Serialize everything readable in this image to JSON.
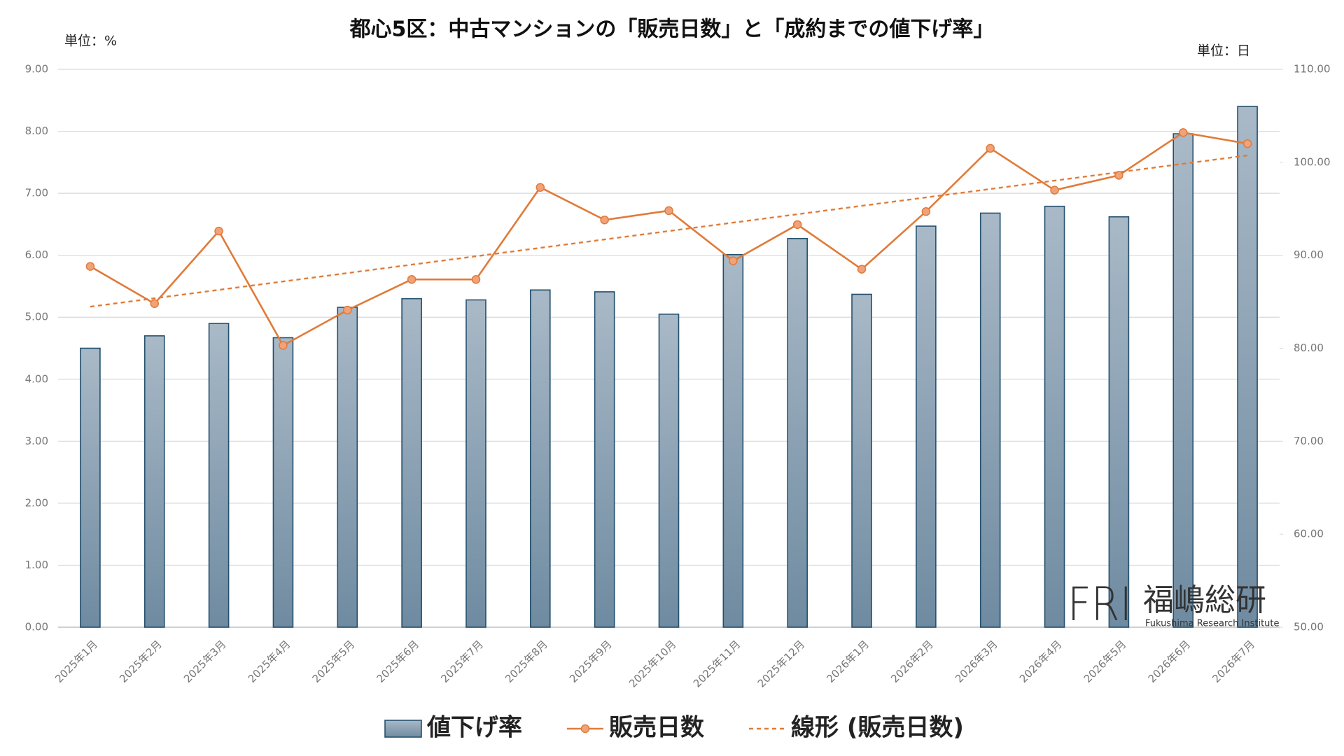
{
  "chart_data": {
    "type": "bar_line",
    "title": "都心5区：中古マンションの「販売日数」と「成約までの値下げ率」",
    "y_unit_label": "単位：%",
    "y2_unit_label": "単位：日",
    "categories": [
      "2025年1月",
      "2025年2月",
      "2025年3月",
      "2025年4月",
      "2025年5月",
      "2025年6月",
      "2025年7月",
      "2025年8月",
      "2025年9月",
      "2025年10月",
      "2025年11月",
      "2025年12月",
      "2026年1月",
      "2026年2月",
      "2026年3月",
      "2026年4月",
      "2026年5月",
      "2026年6月",
      "2026年7月"
    ],
    "series": [
      {
        "name": "値下げ率",
        "type": "bar",
        "color": "#8aa0b3",
        "values": [
          4.5,
          4.7,
          4.9,
          4.67,
          5.16,
          5.3,
          5.28,
          5.44,
          5.41,
          5.05,
          6.01,
          6.27,
          5.37,
          6.47,
          6.68,
          6.79,
          6.62,
          7.96,
          8.4
        ]
      },
      {
        "name": "販売日数",
        "type": "line",
        "axis": "y2",
        "color": "#e07b39",
        "values": [
          88.8,
          84.8,
          92.6,
          80.3,
          84.1,
          87.4,
          87.4,
          97.3,
          93.8,
          94.8,
          89.4,
          93.3,
          88.5,
          94.7,
          101.5,
          97.0,
          98.6,
          103.2,
          102.0
        ]
      }
    ],
    "trendline": {
      "name": "線形 (販売日数)",
      "of_series": 1,
      "color": "#e07b39"
    },
    "ylim": [
      0,
      9
    ],
    "yticks": [
      {
        "value": 0,
        "label": "0.00"
      },
      {
        "value": 1,
        "label": "1.00"
      },
      {
        "value": 2,
        "label": "2.00"
      },
      {
        "value": 3,
        "label": "3.00"
      },
      {
        "value": 4,
        "label": "4.00"
      },
      {
        "value": 5,
        "label": "5.00"
      },
      {
        "value": 6,
        "label": "6.00"
      },
      {
        "value": 7,
        "label": "7.00"
      },
      {
        "value": 8,
        "label": "8.00"
      },
      {
        "value": 9,
        "label": "9.00"
      }
    ],
    "y2lim": [
      50,
      110
    ],
    "y2ticks": [
      {
        "value": 50,
        "label": "50.00"
      },
      {
        "value": 60,
        "label": "60.00"
      },
      {
        "value": 70,
        "label": "70.00"
      },
      {
        "value": 80,
        "label": "80.00"
      },
      {
        "value": 90,
        "label": "90.00"
      },
      {
        "value": 100,
        "label": "100.00"
      },
      {
        "value": 110,
        "label": "110.00"
      }
    ],
    "grid": true,
    "watermark": {
      "logo": "FRI",
      "name": "福嶋総研",
      "subtitle": "Fukushima Research Institute"
    }
  }
}
